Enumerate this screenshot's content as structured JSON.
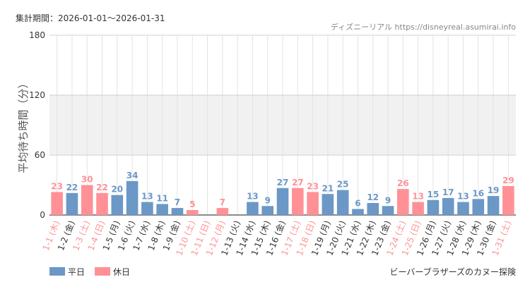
{
  "header": {
    "period": "集計期間：2026-01-01～2026-01-31",
    "source": "ディズニーリアル https://disneyreal.asumirai.info"
  },
  "footer": {
    "attraction": "ビーバーブラザーズのカヌー探険"
  },
  "colors": {
    "weekday": "#6b98c6",
    "holiday": "#ff9196",
    "band": "#f1f1f1",
    "grid": "#e3e3e3"
  },
  "chart_data": {
    "type": "bar",
    "ylabel": "平均待ち時間（分）",
    "xlabel": "",
    "ylim": [
      0,
      180
    ],
    "yticks": [
      0,
      60,
      120,
      180
    ],
    "grid": true,
    "legend": {
      "position": "bottom-left",
      "items": [
        {
          "key": "weekday",
          "label": "平日"
        },
        {
          "key": "holiday",
          "label": "休日"
        }
      ]
    },
    "categories": [
      "1-1 (木)",
      "1-2 (金)",
      "1-3 (土)",
      "1-4 (日)",
      "1-5 (月)",
      "1-6 (火)",
      "1-7 (水)",
      "1-8 (木)",
      "1-9 (金)",
      "1-10 (土)",
      "1-11 (日)",
      "1-12 (月)",
      "1-13 (火)",
      "1-14 (水)",
      "1-15 (木)",
      "1-16 (金)",
      "1-17 (土)",
      "1-18 (日)",
      "1-19 (月)",
      "1-20 (火)",
      "1-21 (水)",
      "1-22 (木)",
      "1-23 (金)",
      "1-24 (土)",
      "1-25 (日)",
      "1-26 (月)",
      "1-27 (火)",
      "1-28 (水)",
      "1-29 (木)",
      "1-30 (金)",
      "1-31 (土)"
    ],
    "values": [
      23,
      22,
      30,
      22,
      20,
      34,
      13,
      11,
      7,
      5,
      null,
      7,
      null,
      13,
      9,
      27,
      27,
      23,
      21,
      25,
      6,
      12,
      9,
      26,
      13,
      15,
      17,
      13,
      16,
      19,
      29
    ],
    "day_type": [
      "holiday",
      "weekday",
      "holiday",
      "holiday",
      "weekday",
      "weekday",
      "weekday",
      "weekday",
      "weekday",
      "holiday",
      "holiday",
      "holiday",
      "weekday",
      "weekday",
      "weekday",
      "weekday",
      "holiday",
      "holiday",
      "weekday",
      "weekday",
      "weekday",
      "weekday",
      "weekday",
      "holiday",
      "holiday",
      "weekday",
      "weekday",
      "weekday",
      "weekday",
      "weekday",
      "holiday"
    ]
  }
}
